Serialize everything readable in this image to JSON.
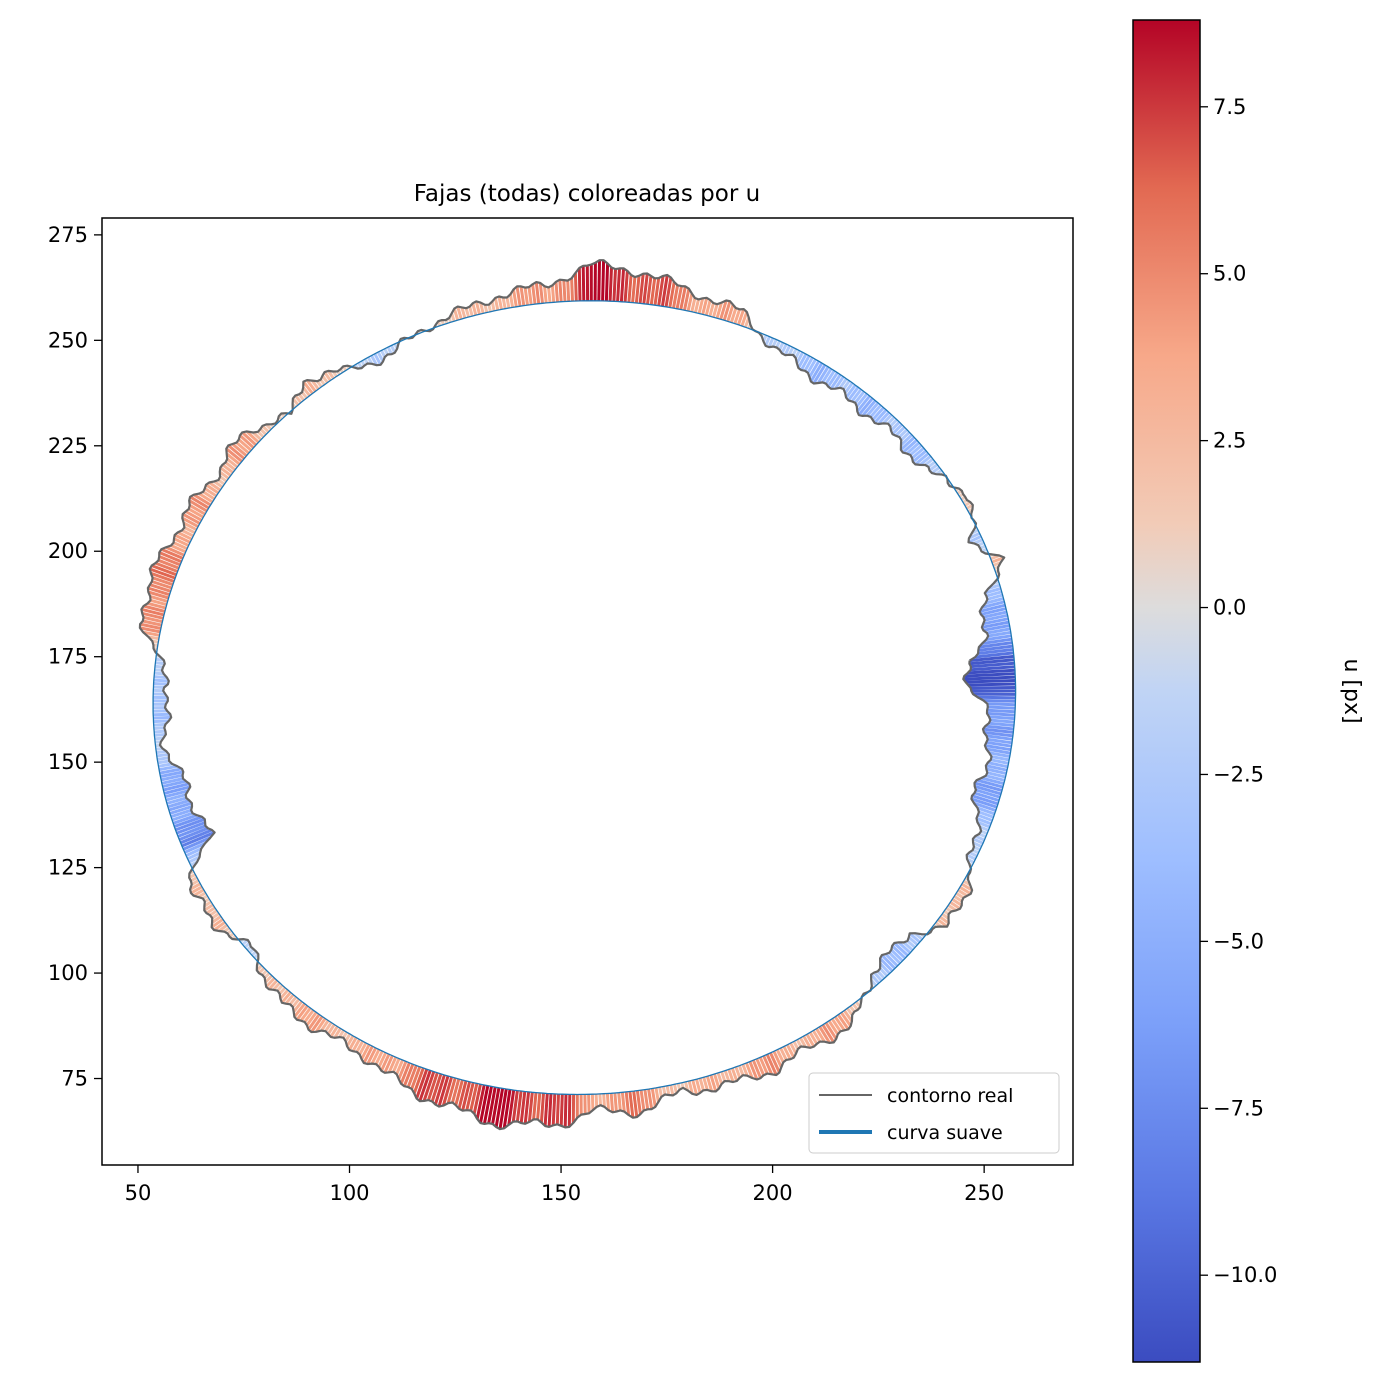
{
  "chart_data": {
    "type": "line",
    "title": "Fajas (todas) coloreadas por u",
    "xlabel": "",
    "ylabel": "",
    "xlim": [
      41.5,
      271
    ],
    "ylim": [
      54.5,
      279
    ],
    "xticks": [
      50,
      100,
      150,
      200,
      250
    ],
    "yticks": [
      75,
      100,
      125,
      150,
      175,
      200,
      225,
      250,
      275
    ],
    "grid": false,
    "legend": {
      "placement": "lower right",
      "entries": [
        {
          "label": "contorno real",
          "color": "#666666",
          "style": "thin-line"
        },
        {
          "label": "curva suave",
          "color": "#1f77b4",
          "style": "thick-line"
        }
      ]
    },
    "smooth_curve": {
      "name": "curva suave",
      "shape": "ellipse",
      "center": [
        155.5,
        165.3
      ],
      "semi_axis_x": 102,
      "semi_axis_y": 94,
      "tilt_deg": 5.5
    },
    "series": [
      {
        "name": "contorno real",
        "color": "#666666",
        "u_profile": [
          [
            0,
            -10.5
          ],
          [
            4,
            -6
          ],
          [
            10,
            -4
          ],
          [
            14,
            3
          ],
          [
            18,
            -3
          ],
          [
            24,
            2.5
          ],
          [
            30,
            -3
          ],
          [
            40,
            -3.5
          ],
          [
            50,
            -4
          ],
          [
            58,
            -2.5
          ],
          [
            64,
            3
          ],
          [
            72,
            5
          ],
          [
            78,
            7.5
          ],
          [
            84,
            8.5
          ],
          [
            90,
            4
          ],
          [
            96,
            3.5
          ],
          [
            100,
            2
          ],
          [
            106,
            1
          ],
          [
            112,
            -2
          ],
          [
            118,
            -0.5
          ],
          [
            124,
            4
          ],
          [
            128,
            -1
          ],
          [
            134,
            4
          ],
          [
            140,
            3
          ],
          [
            148,
            4
          ],
          [
            154,
            4.5
          ],
          [
            158,
            6
          ],
          [
            164,
            4
          ],
          [
            172,
            -4
          ],
          [
            180,
            -2
          ],
          [
            188,
            -5.5
          ],
          [
            196,
            -7
          ],
          [
            202,
            3
          ],
          [
            208,
            2
          ],
          [
            214,
            -1
          ],
          [
            222,
            3.5
          ],
          [
            230,
            3
          ],
          [
            236,
            3
          ],
          [
            242,
            6
          ],
          [
            248,
            7
          ],
          [
            254,
            8.5
          ],
          [
            262,
            7
          ],
          [
            266,
            4
          ],
          [
            272,
            5
          ],
          [
            278,
            2
          ],
          [
            284,
            3.5
          ],
          [
            290,
            4
          ],
          [
            296,
            3
          ],
          [
            302,
            4
          ],
          [
            308,
            -3
          ],
          [
            316,
            -3.5
          ],
          [
            320,
            3
          ],
          [
            326,
            1.5
          ],
          [
            332,
            -2
          ],
          [
            340,
            -6
          ],
          [
            346,
            -5
          ],
          [
            352,
            -7
          ],
          [
            356,
            -11
          ],
          [
            360,
            -10.5
          ]
        ]
      }
    ],
    "colorbar": {
      "label": "u [px]",
      "colormap": "coolwarm",
      "range": [
        -11.3,
        8.8
      ],
      "ticks": [
        7.5,
        5.0,
        2.5,
        0.0,
        -2.5,
        -5.0,
        -7.5,
        -10.0
      ],
      "tick_labels": [
        "7.5",
        "5.0",
        "2.5",
        "0.0",
        "−2.5",
        "−5.0",
        "−7.5",
        "−10.0"
      ]
    }
  }
}
